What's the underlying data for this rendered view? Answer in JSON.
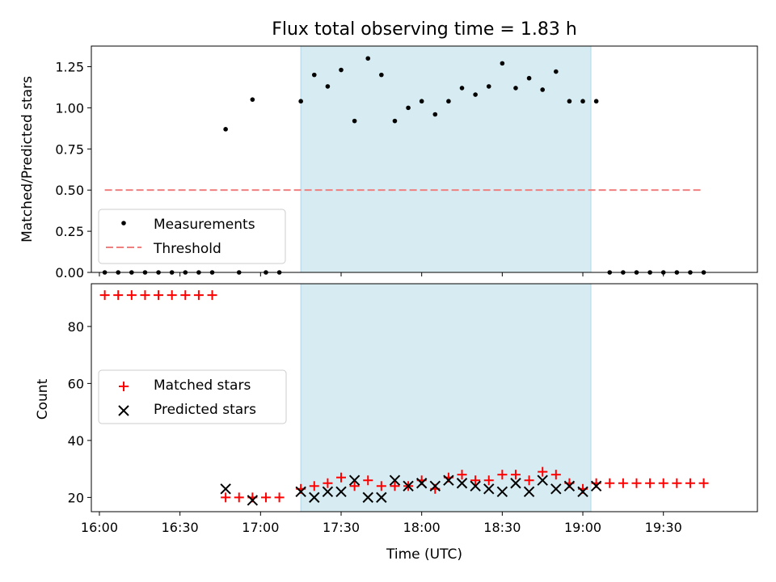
{
  "chart_data": [
    {
      "type": "scatter",
      "title": "Flux total observing time = 1.83 h",
      "ylabel": "Matched/Predicted stars",
      "xlim": [
        "15:57",
        "20:05"
      ],
      "ylim": [
        0,
        1.375
      ],
      "yticks": [
        "0.00",
        "0.25",
        "0.50",
        "0.75",
        "1.00",
        "1.25"
      ],
      "shaded_interval": [
        "17:15",
        "19:03"
      ],
      "legend_position": "center-left",
      "series": [
        {
          "name": "Measurements",
          "marker": "dot",
          "color": "#000000",
          "points": [
            [
              "16:02",
              0
            ],
            [
              "16:07",
              0
            ],
            [
              "16:12",
              0
            ],
            [
              "16:17",
              0
            ],
            [
              "16:22",
              0
            ],
            [
              "16:27",
              0
            ],
            [
              "16:32",
              0
            ],
            [
              "16:37",
              0
            ],
            [
              "16:42",
              0
            ],
            [
              "16:47",
              0.87
            ],
            [
              "16:52",
              0
            ],
            [
              "16:57",
              1.05
            ],
            [
              "17:02",
              0
            ],
            [
              "17:07",
              0
            ],
            [
              "17:15",
              1.04
            ],
            [
              "17:20",
              1.2
            ],
            [
              "17:25",
              1.13
            ],
            [
              "17:30",
              1.23
            ],
            [
              "17:35",
              0.92
            ],
            [
              "17:40",
              1.3
            ],
            [
              "17:45",
              1.2
            ],
            [
              "17:50",
              0.92
            ],
            [
              "17:55",
              1.0
            ],
            [
              "18:00",
              1.04
            ],
            [
              "18:05",
              0.96
            ],
            [
              "18:10",
              1.04
            ],
            [
              "18:15",
              1.12
            ],
            [
              "18:20",
              1.08
            ],
            [
              "18:25",
              1.13
            ],
            [
              "18:30",
              1.27
            ],
            [
              "18:35",
              1.12
            ],
            [
              "18:40",
              1.18
            ],
            [
              "18:45",
              1.11
            ],
            [
              "18:50",
              1.22
            ],
            [
              "18:55",
              1.04
            ],
            [
              "19:00",
              1.04
            ],
            [
              "19:05",
              1.04
            ],
            [
              "19:10",
              0
            ],
            [
              "19:15",
              0
            ],
            [
              "19:20",
              0
            ],
            [
              "19:25",
              0
            ],
            [
              "19:30",
              0
            ],
            [
              "19:35",
              0
            ],
            [
              "19:40",
              0
            ],
            [
              "19:45",
              0
            ]
          ]
        },
        {
          "name": "Threshold",
          "marker": "dashed-line",
          "color": "#f08080",
          "points": [
            [
              "16:02",
              0.5
            ],
            [
              "19:45",
              0.5
            ]
          ]
        }
      ]
    },
    {
      "type": "scatter",
      "xlabel": "Time (UTC)",
      "ylabel": "Count",
      "xlim": [
        "15:57",
        "20:05"
      ],
      "ylim": [
        15,
        95
      ],
      "yticks": [
        "20",
        "40",
        "60",
        "80"
      ],
      "xticks": [
        "16:00",
        "16:30",
        "17:00",
        "17:30",
        "18:00",
        "18:30",
        "19:00",
        "19:30"
      ],
      "shaded_interval": [
        "17:15",
        "19:03"
      ],
      "legend_position": "center-left",
      "series": [
        {
          "name": "Matched stars",
          "marker": "plus",
          "color": "#ff0000",
          "points": [
            [
              "16:02",
              91
            ],
            [
              "16:07",
              91
            ],
            [
              "16:12",
              91
            ],
            [
              "16:17",
              91
            ],
            [
              "16:22",
              91
            ],
            [
              "16:27",
              91
            ],
            [
              "16:32",
              91
            ],
            [
              "16:37",
              91
            ],
            [
              "16:42",
              91
            ],
            [
              "16:47",
              20
            ],
            [
              "16:52",
              20
            ],
            [
              "16:57",
              20
            ],
            [
              "17:02",
              20
            ],
            [
              "17:07",
              20
            ],
            [
              "17:15",
              23
            ],
            [
              "17:20",
              24
            ],
            [
              "17:25",
              25
            ],
            [
              "17:30",
              27
            ],
            [
              "17:35",
              24
            ],
            [
              "17:40",
              26
            ],
            [
              "17:45",
              24
            ],
            [
              "17:50",
              24
            ],
            [
              "17:55",
              24
            ],
            [
              "18:00",
              26
            ],
            [
              "18:05",
              23
            ],
            [
              "18:10",
              27
            ],
            [
              "18:15",
              28
            ],
            [
              "18:20",
              26
            ],
            [
              "18:25",
              26
            ],
            [
              "18:30",
              28
            ],
            [
              "18:35",
              28
            ],
            [
              "18:40",
              26
            ],
            [
              "18:45",
              29
            ],
            [
              "18:50",
              28
            ],
            [
              "18:55",
              25
            ],
            [
              "19:00",
              23
            ],
            [
              "19:05",
              25
            ],
            [
              "19:10",
              25
            ],
            [
              "19:15",
              25
            ],
            [
              "19:20",
              25
            ],
            [
              "19:25",
              25
            ],
            [
              "19:30",
              25
            ],
            [
              "19:35",
              25
            ],
            [
              "19:40",
              25
            ],
            [
              "19:45",
              25
            ]
          ]
        },
        {
          "name": "Predicted stars",
          "marker": "x",
          "color": "#000000",
          "points": [
            [
              "16:47",
              23
            ],
            [
              "16:57",
              19
            ],
            [
              "17:15",
              22
            ],
            [
              "17:20",
              20
            ],
            [
              "17:25",
              22
            ],
            [
              "17:30",
              22
            ],
            [
              "17:35",
              26
            ],
            [
              "17:40",
              20
            ],
            [
              "17:45",
              20
            ],
            [
              "17:50",
              26
            ],
            [
              "17:55",
              24
            ],
            [
              "18:00",
              25
            ],
            [
              "18:05",
              24
            ],
            [
              "18:10",
              26
            ],
            [
              "18:15",
              25
            ],
            [
              "18:20",
              24
            ],
            [
              "18:25",
              23
            ],
            [
              "18:30",
              22
            ],
            [
              "18:35",
              25
            ],
            [
              "18:40",
              22
            ],
            [
              "18:45",
              26
            ],
            [
              "18:50",
              23
            ],
            [
              "18:55",
              24
            ],
            [
              "19:00",
              22
            ],
            [
              "19:05",
              24
            ]
          ]
        }
      ]
    }
  ]
}
